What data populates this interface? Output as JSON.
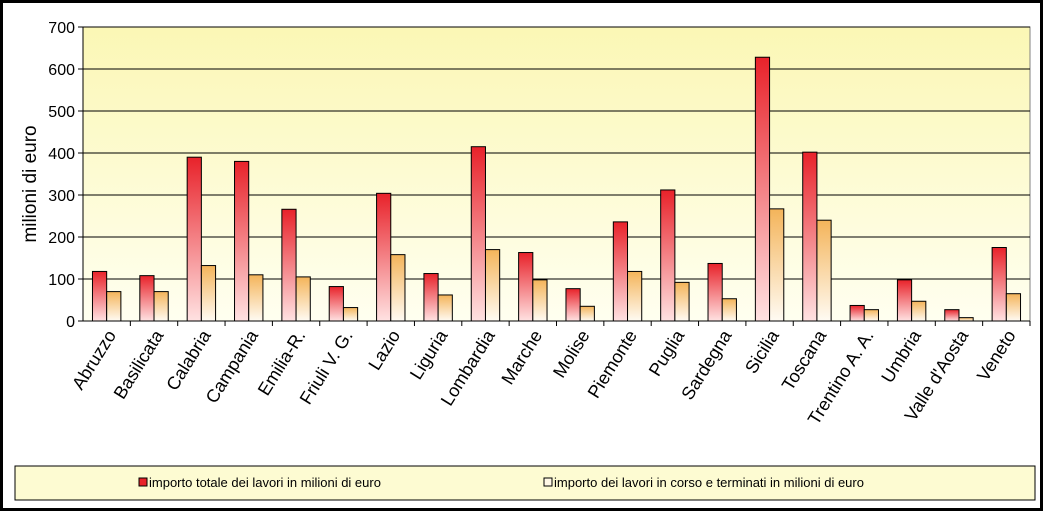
{
  "chart_data": {
    "type": "bar",
    "title": "",
    "xlabel": "",
    "ylabel": "milioni di euro",
    "ylim": [
      0,
      700
    ],
    "yticks": [
      0,
      100,
      200,
      300,
      400,
      500,
      600,
      700
    ],
    "grid": true,
    "legend_position": "bottom",
    "categories": [
      "Abruzzo",
      "Basilicata",
      "Calabria",
      "Campania",
      "Emilia-R.",
      "Friuli  V. G.",
      "Lazio",
      "Liguria",
      "Lombardia",
      "Marche",
      "Molise",
      "Piemonte",
      "Puglia",
      "Sardegna",
      "Sicilia",
      "Toscana",
      "Trentino A. A.",
      "Umbria",
      "Valle d'Aosta",
      "Veneto"
    ],
    "series": [
      {
        "name": "importo totale dei lavori in milioni di euro",
        "color": "#e8222a",
        "values": [
          118,
          108,
          390,
          380,
          266,
          82,
          304,
          113,
          415,
          163,
          77,
          236,
          312,
          137,
          628,
          402,
          37,
          98,
          27,
          175
        ]
      },
      {
        "name": "importo dei lavori in corso e terminati in milioni di euro",
        "color": "#f6c27a",
        "values": [
          70,
          70,
          132,
          110,
          105,
          32,
          158,
          62,
          170,
          98,
          35,
          118,
          92,
          53,
          267,
          240,
          27,
          47,
          8,
          65
        ]
      }
    ]
  },
  "colors": {
    "plot_background": "#fdfbc9",
    "gridline": "#000000",
    "bar_outline": "#000000"
  }
}
